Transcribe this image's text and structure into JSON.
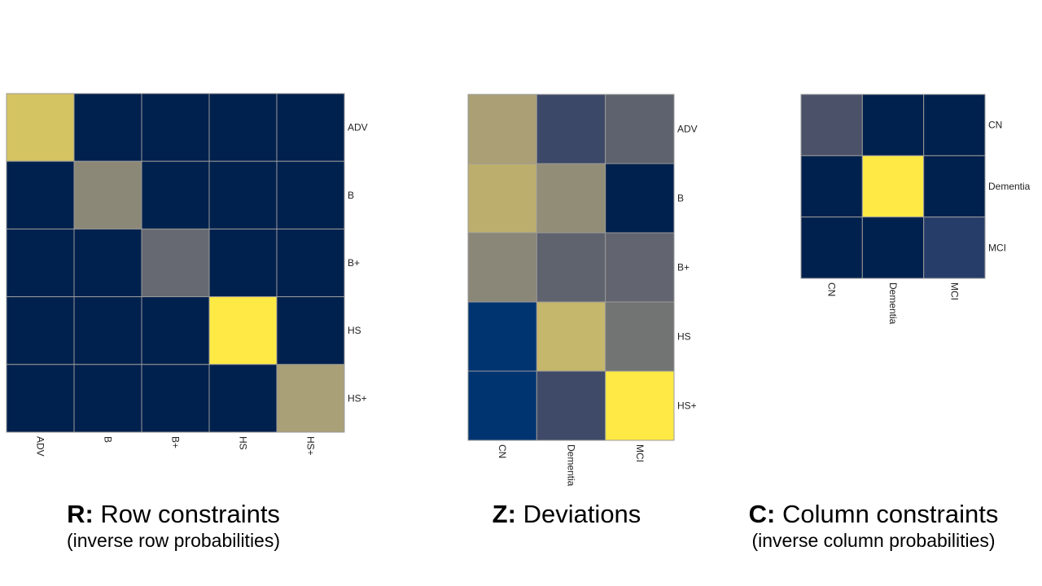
{
  "chart_data": [
    {
      "type": "heatmap",
      "letter": "R:",
      "title": "Row constraints",
      "subtitle": "(inverse row probabilities)",
      "row_labels": [
        "ADV",
        "B",
        "B+",
        "HS",
        "HS+"
      ],
      "col_labels": [
        "ADV",
        "B",
        "B+",
        "HS",
        "HS+"
      ],
      "colors": [
        [
          "#d5c462",
          "#00204d",
          "#00204d",
          "#00204d",
          "#00204d"
        ],
        [
          "#00204d",
          "#8c8877",
          "#00204d",
          "#00204d",
          "#00204d"
        ],
        [
          "#00204d",
          "#00204d",
          "#676972",
          "#00204d",
          "#00204d"
        ],
        [
          "#00204d",
          "#00204d",
          "#00204d",
          "#ffe945",
          "#00204d"
        ],
        [
          "#00204d",
          "#00204d",
          "#00204d",
          "#00204d",
          "#aaa077"
        ]
      ]
    },
    {
      "type": "heatmap",
      "letter": "Z:",
      "title": "Deviations",
      "subtitle": "",
      "row_labels": [
        "ADV",
        "B",
        "B+",
        "HS",
        "HS+"
      ],
      "col_labels": [
        "CN",
        "Dementia",
        "MCI"
      ],
      "colors": [
        [
          "#aba075",
          "#3c4868",
          "#5e626e"
        ],
        [
          "#bcaf6e",
          "#928d77",
          "#00204d"
        ],
        [
          "#8a8678",
          "#5f636e",
          "#62646f"
        ],
        [
          "#003471",
          "#c5b76c",
          "#727373"
        ],
        [
          "#003471",
          "#3f4a68",
          "#ffe945"
        ]
      ]
    },
    {
      "type": "heatmap",
      "letter": "C:",
      "title": "Column constraints",
      "subtitle": "(inverse column probabilities)",
      "row_labels": [
        "CN",
        "Dementia",
        "MCI"
      ],
      "col_labels": [
        "CN",
        "Dementia",
        "MCI"
      ],
      "colors": [
        [
          "#4a5169",
          "#00204d",
          "#00204d"
        ],
        [
          "#00204d",
          "#ffe945",
          "#00204d"
        ],
        [
          "#00204d",
          "#00204d",
          "#273d69"
        ]
      ]
    }
  ]
}
